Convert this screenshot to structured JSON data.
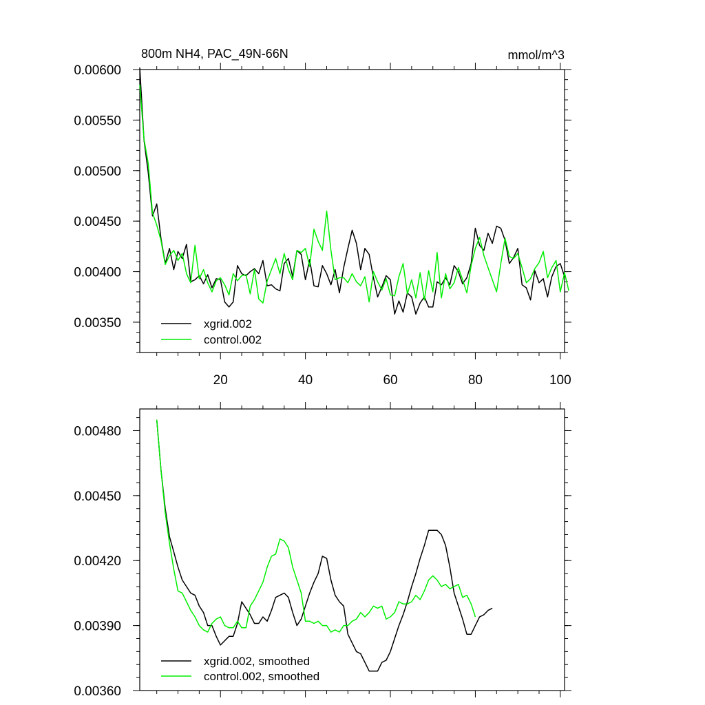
{
  "chart_data": [
    {
      "type": "line",
      "title": "800m NH4, PAC_49N-66N",
      "units": "mmol/m^3",
      "xlim": [
        1,
        101
      ],
      "ylim": [
        0.0032,
        0.006
      ],
      "xticks": [
        20,
        40,
        60,
        80,
        100
      ],
      "xtick_labels": [
        "20",
        "40",
        "60",
        "80",
        "100"
      ],
      "yticks": [
        0.0035,
        0.004,
        0.0045,
        0.005,
        0.0055,
        0.006
      ],
      "ytick_labels": [
        "0.00350",
        "0.00400",
        "0.00450",
        "0.00500",
        "0.00550",
        "0.00600"
      ],
      "legend_position": "bottom-left",
      "series": [
        {
          "name": "xgrid.002",
          "color": "#000000",
          "values": [
            0.00603,
            0.0053,
            0.00498,
            0.00455,
            0.00467,
            0.00433,
            0.00408,
            0.00423,
            0.00402,
            0.0042,
            0.00413,
            0.00427,
            0.0039,
            0.00392,
            0.00396,
            0.00388,
            0.00397,
            0.00384,
            0.00393,
            0.00392,
            0.0037,
            0.00365,
            0.0037,
            0.00406,
            0.00398,
            0.00396,
            0.004,
            0.00403,
            0.00398,
            0.00411,
            0.00386,
            0.00387,
            0.00383,
            0.00381,
            0.00408,
            0.00413,
            0.00395,
            0.00421,
            0.00417,
            0.00392,
            0.00412,
            0.00386,
            0.00385,
            0.00406,
            0.00398,
            0.00387,
            0.00402,
            0.00379,
            0.00404,
            0.00423,
            0.00441,
            0.00428,
            0.00402,
            0.00423,
            0.00417,
            0.00394,
            0.00375,
            0.00385,
            0.00396,
            0.00392,
            0.00358,
            0.00371,
            0.0036,
            0.00379,
            0.00375,
            0.00358,
            0.00369,
            0.00375,
            0.00365,
            0.00365,
            0.0039,
            0.00387,
            0.00394,
            0.00387,
            0.00406,
            0.004,
            0.00388,
            0.00394,
            0.00408,
            0.00443,
            0.00426,
            0.00421,
            0.00438,
            0.00428,
            0.00445,
            0.00443,
            0.00431,
            0.00408,
            0.00414,
            0.00423,
            0.00387,
            0.00384,
            0.00372,
            0.00401,
            0.00389,
            0.00393,
            0.00375,
            0.00395,
            0.00405,
            0.00408,
            0.00395
          ],
          "smoothed": [
            0.00485,
            0.00462,
            0.00444,
            0.00431,
            0.00424,
            0.00417,
            0.00411,
            0.00408,
            0.00405,
            0.00404,
            0.00399,
            0.00396,
            0.0039,
            0.0039,
            0.00385,
            0.00381,
            0.00383,
            0.00385,
            0.00385,
            0.00391,
            0.00401,
            0.00398,
            0.00395,
            0.00391,
            0.00391,
            0.00394,
            0.00392,
            0.00397,
            0.00403,
            0.00404,
            0.00405,
            0.00403,
            0.00396,
            0.0039,
            0.00393,
            0.00399,
            0.00405,
            0.0041,
            0.00414,
            0.00422,
            0.00421,
            0.00411,
            0.00404,
            0.00401,
            0.00399,
            0.00386,
            0.00382,
            0.00378,
            0.00377,
            0.00373,
            0.00369,
            0.00369,
            0.00369,
            0.00373,
            0.00374,
            0.00378,
            0.00384,
            0.0039,
            0.00395,
            0.00401,
            0.00408,
            0.00414,
            0.00421,
            0.00427,
            0.00434,
            0.00434,
            0.00434,
            0.00432,
            0.00427,
            0.00417,
            0.00405,
            0.00399,
            0.00393,
            0.00386,
            0.00386,
            0.0039,
            0.00394,
            0.00395,
            0.00397,
            0.00398
          ]
        },
        {
          "name": "control.002",
          "color": "#00ee00",
          "values": [
            0.00585,
            0.00531,
            0.00507,
            0.00458,
            0.00446,
            0.00431,
            0.00407,
            0.00416,
            0.00421,
            0.00411,
            0.00418,
            0.00398,
            0.00389,
            0.00426,
            0.00393,
            0.00402,
            0.00389,
            0.0038,
            0.00391,
            0.00394,
            0.00387,
            0.00377,
            0.00398,
            0.00391,
            0.00396,
            0.00397,
            0.00378,
            0.00402,
            0.00373,
            0.00369,
            0.00391,
            0.00402,
            0.00413,
            0.00398,
            0.00418,
            0.00402,
            0.00392,
            0.00421,
            0.00419,
            0.00423,
            0.00405,
            0.00442,
            0.0043,
            0.00421,
            0.0046,
            0.00421,
            0.00392,
            0.00394,
            0.00394,
            0.00389,
            0.00398,
            0.0039,
            0.00386,
            0.00395,
            0.0037,
            0.004,
            0.0039,
            0.00382,
            0.00393,
            0.00377,
            0.00376,
            0.00395,
            0.00408,
            0.00378,
            0.00392,
            0.00374,
            0.00399,
            0.00372,
            0.00401,
            0.0038,
            0.00419,
            0.00374,
            0.00398,
            0.00383,
            0.00389,
            0.00404,
            0.00392,
            0.00379,
            0.00406,
            0.00423,
            0.00434,
            0.00416,
            0.00404,
            0.00392,
            0.0038,
            0.00408,
            0.00433,
            0.00415,
            0.00413,
            0.00418,
            0.00404,
            0.00389,
            0.00393,
            0.00403,
            0.00409,
            0.0042,
            0.00394,
            0.00404,
            0.00411,
            0.0038,
            0.00399,
            0.00381
          ],
          "smoothed": [
            0.00485,
            0.00462,
            0.00442,
            0.00428,
            0.00416,
            0.00406,
            0.00405,
            0.00401,
            0.00397,
            0.00394,
            0.0039,
            0.00388,
            0.00387,
            0.00391,
            0.00393,
            0.00394,
            0.0039,
            0.00389,
            0.00389,
            0.00392,
            0.00389,
            0.00389,
            0.00399,
            0.00402,
            0.00406,
            0.0041,
            0.00417,
            0.00422,
            0.00423,
            0.0043,
            0.00429,
            0.00426,
            0.00417,
            0.00411,
            0.00405,
            0.00392,
            0.00392,
            0.00391,
            0.00392,
            0.0039,
            0.0039,
            0.00387,
            0.00388,
            0.00387,
            0.0039,
            0.0039,
            0.00392,
            0.00393,
            0.00396,
            0.00394,
            0.00396,
            0.00399,
            0.00398,
            0.00399,
            0.00393,
            0.00394,
            0.00396,
            0.00401,
            0.004,
            0.004,
            0.00401,
            0.00404,
            0.00402,
            0.00406,
            0.00411,
            0.00413,
            0.00411,
            0.00408,
            0.00409,
            0.00407,
            0.00408,
            0.00409,
            0.00403,
            0.00404,
            0.004,
            0.00394
          ]
        }
      ]
    },
    {
      "type": "line",
      "title": "",
      "xlim": [
        1,
        101
      ],
      "ylim": [
        0.0036,
        0.0049
      ],
      "xticks": [
        20,
        40,
        60,
        80,
        100
      ],
      "xtick_labels": [
        "",
        "",
        "",
        "",
        ""
      ],
      "yticks": [
        0.0036,
        0.0039,
        0.0042,
        0.0045,
        0.0048
      ],
      "ytick_labels": [
        "0.00360",
        "0.00390",
        "0.00420",
        "0.00450",
        "0.00480"
      ],
      "legend_position": "bottom-left",
      "series_labels": [
        "xgrid.002, smoothed",
        "control.002, smoothed"
      ]
    }
  ]
}
